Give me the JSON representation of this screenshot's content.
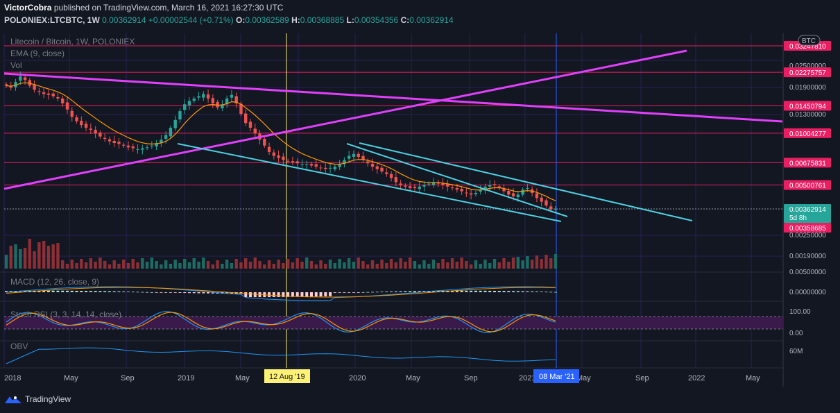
{
  "header": {
    "author": "VictorCobra",
    "published_text": "published on TradingView.com, March 16, 2021 16:27:30 UTC",
    "symbol": "POLONIEX:LTCBTC, 1W",
    "last": "0.00362914",
    "change": "+0.00002544 (+0.71%)",
    "o_label": "O:",
    "o": "0.00362589",
    "h_label": "H:",
    "h": "0.00368885",
    "l_label": "L:",
    "l": "0.00354356",
    "c_label": "C:",
    "c": "0.00362914"
  },
  "legend": {
    "pair": "Litecoin / Bitcoin, 1W, POLONIEX",
    "ema": "EMA (9, close)",
    "vol": "Vol",
    "macd": "MACD (12, 26, close, 9)",
    "stoch": "Stoch RSI (3, 3, 14, 14, close)",
    "obv": "OBV",
    "currency_badge": "BTC"
  },
  "footer": {
    "brand": "TradingView",
    "logo_icon": "tradingview-logo-icon"
  },
  "colors": {
    "background": "#131722",
    "up": "#26a69a",
    "down": "#ef5350",
    "ema": "#ff9800",
    "trend_magenta": "#e040fb",
    "channel_cyan": "#4dd0e1",
    "level_line": "#e91e63",
    "macd": "#2196f3",
    "signal": "#ff9800",
    "stoch_k": "#2196f3",
    "stoch_d": "#ff9800",
    "obv": "#2196f3"
  },
  "chart_data": {
    "type": "candlestick",
    "title": "Litecoin / Bitcoin, 1W, POLONIEX",
    "y_scale": "log",
    "ylim": [
      0.0029,
      0.031
    ],
    "x_tick_labels": [
      "2018",
      "May",
      "Sep",
      "2019",
      "May",
      "Sep",
      "2020",
      "May",
      "Sep",
      "2021",
      "May",
      "Sep",
      "2022",
      "May"
    ],
    "y_tick_labels": [
      "0.02500000",
      "0.01900000",
      "0.01300000",
      "0.00250000",
      "0.00190000",
      "0.00500000",
      "0.00000000",
      "100.00",
      "0.00",
      "60M"
    ],
    "horizontal_levels": [
      {
        "label": "0.03247810",
        "value": 0.0324781
      },
      {
        "label": "0.02275757",
        "value": 0.02275757
      },
      {
        "label": "0.01450794",
        "value": 0.01450794
      },
      {
        "label": "0.01004277",
        "value": 0.01004277
      },
      {
        "label": "0.00675831",
        "value": 0.00675831
      },
      {
        "label": "0.00500761",
        "value": 0.00500761
      },
      {
        "label": "0.00358685",
        "value": 0.00358685
      }
    ],
    "current_price": {
      "label": "0.00362914",
      "value": 0.00362914,
      "countdown": "5d 8h"
    },
    "markers": [
      {
        "label": "12 Aug '19",
        "kind": "vertical",
        "color": "#fff176"
      },
      {
        "label": "08 Mar '21",
        "kind": "vertical",
        "color": "#2962ff"
      }
    ],
    "stoch_levels": [
      80,
      20
    ],
    "series_close_estimate": [
      0.019,
      0.0185,
      0.02,
      0.0215,
      0.0205,
      0.019,
      0.018,
      0.0175,
      0.017,
      0.0168,
      0.0165,
      0.016,
      0.015,
      0.0138,
      0.0125,
      0.0118,
      0.0112,
      0.0108,
      0.0105,
      0.01,
      0.0096,
      0.0093,
      0.009,
      0.0088,
      0.0087,
      0.0085,
      0.0083,
      0.0082,
      0.0081,
      0.0082,
      0.0083,
      0.0085,
      0.0088,
      0.0092,
      0.0098,
      0.0108,
      0.012,
      0.0135,
      0.0148,
      0.0155,
      0.016,
      0.0165,
      0.017,
      0.016,
      0.015,
      0.0142,
      0.0148,
      0.016,
      0.0168,
      0.015,
      0.013,
      0.0115,
      0.0108,
      0.01,
      0.0092,
      0.0085,
      0.0078,
      0.0074,
      0.0072,
      0.007,
      0.0069,
      0.0068,
      0.0067,
      0.0066,
      0.0066,
      0.0065,
      0.0064,
      0.0063,
      0.0062,
      0.0063,
      0.0064,
      0.0066,
      0.007,
      0.0074,
      0.0076,
      0.0073,
      0.007,
      0.0067,
      0.0064,
      0.0062,
      0.006,
      0.0058,
      0.0055,
      0.0052,
      0.005,
      0.0049,
      0.0048,
      0.0048,
      0.0049,
      0.005,
      0.0051,
      0.0052,
      0.0051,
      0.005,
      0.0049,
      0.0048,
      0.0047,
      0.0046,
      0.0045,
      0.0044,
      0.0045,
      0.0047,
      0.0049,
      0.005,
      0.005,
      0.0048,
      0.0046,
      0.0044,
      0.0043,
      0.0044,
      0.0047,
      0.0048,
      0.0045,
      0.0042,
      0.004,
      0.0038,
      0.0036,
      0.00363
    ]
  }
}
